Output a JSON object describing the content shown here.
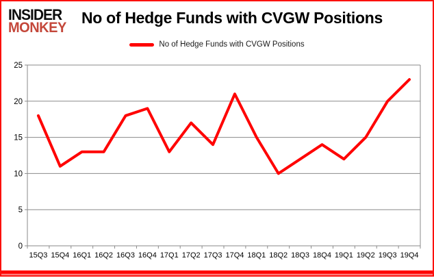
{
  "brand": {
    "logo_line1": "INSIDER",
    "logo_line2": "MONKEY"
  },
  "header": {
    "title": "No of Hedge Funds with CVGW Positions"
  },
  "legend": {
    "label": "No of Hedge Funds with CVGW Positions",
    "swatch_color": "#ff0000"
  },
  "chart_data": {
    "type": "line",
    "title": "No of Hedge Funds with CVGW Positions",
    "categories": [
      "15Q3",
      "15Q4",
      "16Q1",
      "16Q2",
      "16Q3",
      "16Q4",
      "17Q1",
      "17Q2",
      "17Q3",
      "17Q4",
      "18Q1",
      "18Q2",
      "18Q3",
      "18Q4",
      "19Q1",
      "19Q2",
      "19Q3",
      "19Q4"
    ],
    "series": [
      {
        "name": "No of Hedge Funds with CVGW Positions",
        "color": "#ff0000",
        "values": [
          18,
          11,
          13,
          13,
          18,
          19,
          13,
          17,
          14,
          21,
          15,
          10,
          12,
          14,
          12,
          15,
          20,
          23
        ]
      }
    ],
    "xlabel": "",
    "ylabel": "",
    "ylim": [
      0,
      25
    ],
    "yticks": [
      0,
      5,
      10,
      15,
      20,
      25
    ],
    "grid": true,
    "legend_position": "top-center"
  },
  "colors": {
    "line": "#ff0000",
    "grid": "#8a8a8a",
    "axis": "#8a8a8a",
    "tick_text": "#000000",
    "frame_border": "#fb100d",
    "logo_black": "#0d0d0d",
    "logo_red": "#c4473a"
  }
}
